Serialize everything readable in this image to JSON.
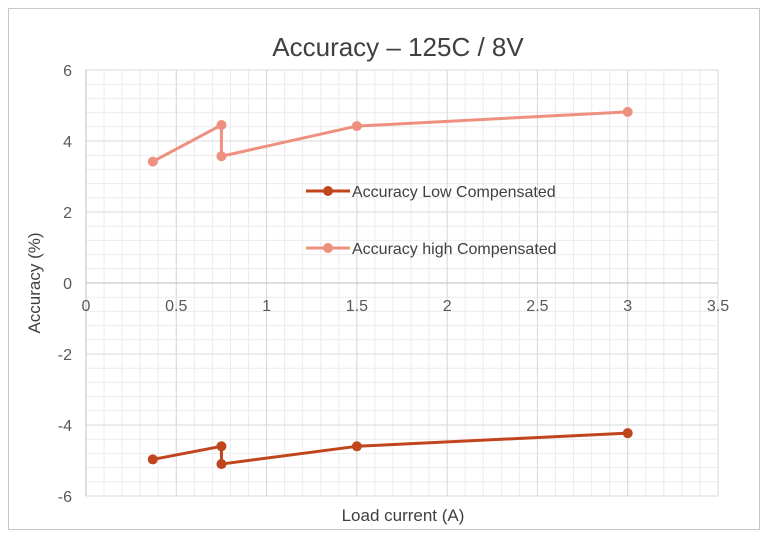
{
  "chart_data": {
    "type": "line",
    "title": "Accuracy – 125C / 8V",
    "xlabel": "Load current (A)",
    "ylabel": "Accuracy (%)",
    "xlim": [
      0,
      3.5
    ],
    "ylim": [
      -6,
      6
    ],
    "x_ticks": [
      0,
      0.5,
      1,
      1.5,
      2,
      2.5,
      3,
      3.5
    ],
    "x_tick_labels": [
      "0",
      "0.5",
      "1",
      "1.5",
      "2",
      "2.5",
      "3",
      "3.5"
    ],
    "y_ticks": [
      -6,
      -4,
      -2,
      0,
      2,
      4,
      6
    ],
    "y_tick_labels": [
      "-6",
      "-4",
      "-2",
      "0",
      "2",
      "4",
      "6"
    ],
    "grid": true,
    "minor_grid": true,
    "legend_position": "center-right",
    "series": [
      {
        "name": "Accuracy Low Compensated",
        "color": "#c0441c",
        "x": [
          0.37,
          0.75,
          0.75,
          1.5,
          3
        ],
        "y": [
          -4.97,
          -4.6,
          -5.1,
          -4.6,
          -4.23
        ]
      },
      {
        "name": "Accuracy high Compensated",
        "color": "#ee9080",
        "x": [
          0.37,
          0.75,
          0.75,
          1.5,
          3
        ],
        "y": [
          3.42,
          4.45,
          3.57,
          4.42,
          4.82
        ]
      }
    ]
  }
}
